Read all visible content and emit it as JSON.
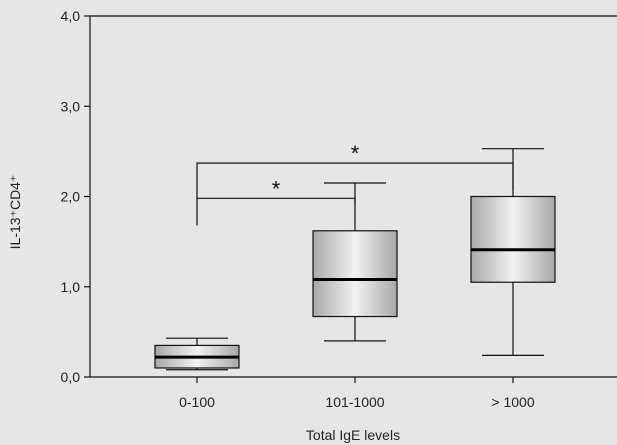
{
  "chart_data": {
    "type": "boxplot",
    "title": "",
    "xlabel": "Total IgE levels",
    "ylabel": "IL-13⁺CD4⁺",
    "ylim": [
      0,
      4
    ],
    "yticks": [
      "0,0",
      "1,0",
      "2,0",
      "3,0",
      "4,0"
    ],
    "ytick_values": [
      0,
      1,
      2,
      3,
      4
    ],
    "grid": false,
    "box_fill": [
      "#a8a8a8",
      "#f2f2f2",
      "#a8a8a8"
    ],
    "categories": [
      "0-100",
      "101-1000",
      "> 1000"
    ],
    "boxes": [
      {
        "category": "0-100",
        "min": 0.08,
        "q1": 0.1,
        "median": 0.22,
        "q3": 0.35,
        "max": 0.43
      },
      {
        "category": "101-1000",
        "min": 0.4,
        "q1": 0.67,
        "median": 1.08,
        "q3": 1.62,
        "max": 2.15
      },
      {
        "category": "> 1000",
        "min": 0.24,
        "q1": 1.05,
        "median": 1.41,
        "q3": 2.0,
        "max": 2.53
      }
    ],
    "significance": [
      {
        "from": 0,
        "to": 1,
        "y": 1.98,
        "start_y": 1.68,
        "end_y": 1.92,
        "label": "*"
      },
      {
        "from": 0,
        "to": 2,
        "y": 2.37,
        "start_y": 1.98,
        "end_y": 2.07,
        "label": "*"
      }
    ]
  }
}
